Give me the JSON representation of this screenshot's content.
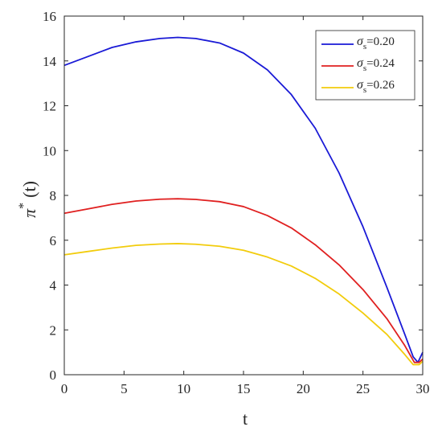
{
  "chart_data": {
    "type": "line",
    "xlabel": "t",
    "ylabel": {
      "symbol": "π",
      "superscript": "*",
      "arg": "(t)"
    },
    "xlim": [
      0,
      30
    ],
    "ylim": [
      0,
      16
    ],
    "xticks": [
      0,
      5,
      10,
      15,
      20,
      25,
      30
    ],
    "yticks": [
      0,
      2,
      4,
      6,
      8,
      10,
      12,
      14,
      16
    ],
    "grid": false,
    "legend_position": "top-right",
    "series": [
      {
        "name": "σs=0.20",
        "legend": {
          "symbol": "σ",
          "subscript": "s",
          "value": "=0.20"
        },
        "color": "#1a1ad6",
        "x": [
          0,
          2,
          4,
          6,
          8,
          9.5,
          11,
          13,
          15,
          17,
          19,
          21,
          23,
          25,
          27,
          28.5,
          29.2,
          29.6,
          30
        ],
        "y": [
          13.8,
          14.2,
          14.6,
          14.85,
          15.0,
          15.05,
          15.0,
          14.8,
          14.35,
          13.6,
          12.5,
          11.0,
          9.0,
          6.6,
          3.9,
          1.8,
          0.8,
          0.55,
          1.0
        ]
      },
      {
        "name": "σs=0.24",
        "legend": {
          "symbol": "σ",
          "subscript": "s",
          "value": "=0.24"
        },
        "color": "#e02020",
        "x": [
          0,
          2,
          4,
          6,
          8,
          9.5,
          11,
          13,
          15,
          17,
          19,
          21,
          23,
          25,
          27,
          28.5,
          29.3,
          29.7,
          30
        ],
        "y": [
          7.2,
          7.4,
          7.6,
          7.75,
          7.83,
          7.85,
          7.82,
          7.72,
          7.5,
          7.1,
          6.55,
          5.8,
          4.9,
          3.8,
          2.5,
          1.3,
          0.55,
          0.55,
          0.7
        ]
      },
      {
        "name": "σs=0.26",
        "legend": {
          "symbol": "σ",
          "subscript": "s",
          "value": "=0.26"
        },
        "color": "#f2cc0c",
        "x": [
          0,
          2,
          4,
          6,
          8,
          9.5,
          11,
          13,
          15,
          17,
          19,
          21,
          23,
          25,
          27,
          28.5,
          29.2,
          29.7,
          30
        ],
        "y": [
          5.35,
          5.5,
          5.65,
          5.77,
          5.83,
          5.85,
          5.82,
          5.73,
          5.55,
          5.25,
          4.85,
          4.3,
          3.6,
          2.75,
          1.8,
          0.9,
          0.45,
          0.45,
          0.6
        ]
      }
    ]
  }
}
